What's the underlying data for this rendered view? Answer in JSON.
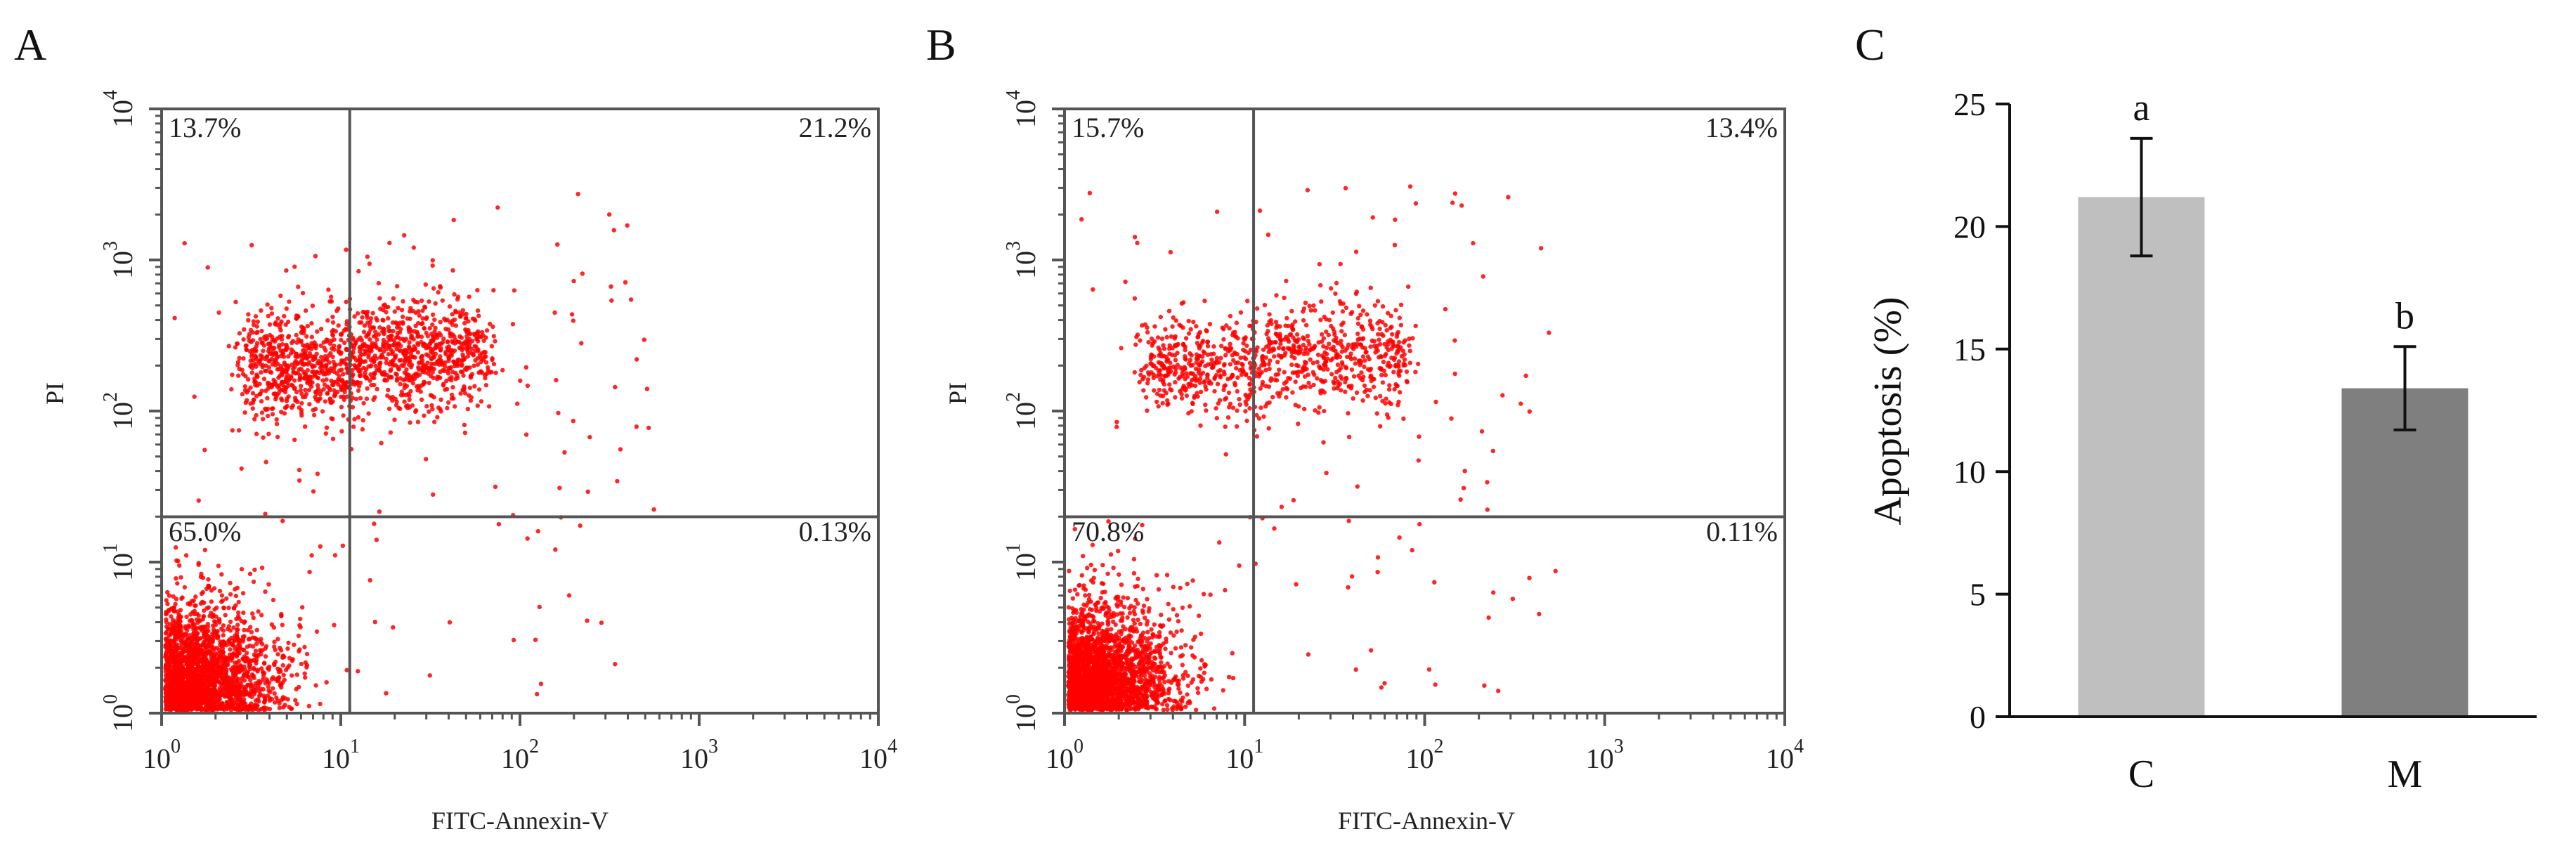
{
  "figure": {
    "panels": [
      {
        "letter": "A",
        "type": "flow-cytometry",
        "x_label": "FITC-Annexin-V",
        "y_label": "PI",
        "x_ticks": [
          "10^0",
          "10^1",
          "10^2",
          "10^3",
          "10^4"
        ],
        "y_ticks": [
          "10^0",
          "10^1",
          "10^2",
          "10^3",
          "10^4"
        ],
        "quadrants": {
          "upper_left": "13.7%",
          "upper_right": "21.2%",
          "lower_left": "65.0%",
          "lower_right": "0.13%"
        },
        "gate_x_log": 1.05,
        "gate_y_log": 1.3,
        "dot_color": "#ff0000"
      },
      {
        "letter": "B",
        "type": "flow-cytometry",
        "x_label": "FITC-Annexin-V",
        "y_label": "PI",
        "x_ticks": [
          "10^0",
          "10^1",
          "10^2",
          "10^3",
          "10^4"
        ],
        "y_ticks": [
          "10^0",
          "10^1",
          "10^2",
          "10^3",
          "10^4"
        ],
        "quadrants": {
          "upper_left": "15.7%",
          "upper_right": "13.4%",
          "lower_left": "70.8%",
          "lower_right": "0.11%"
        },
        "gate_x_log": 1.05,
        "gate_y_log": 1.3,
        "dot_color": "#ff0000"
      }
    ]
  },
  "chart_data": {
    "type": "bar",
    "panel_letter": "C",
    "categories": [
      "C",
      "M"
    ],
    "values": [
      21.2,
      13.4
    ],
    "errors": [
      2.4,
      1.7
    ],
    "significance": [
      "a",
      "b"
    ],
    "bar_colors": [
      "#bfbfbf",
      "#7f7f7f"
    ],
    "ylabel": "Apoptosis (%)",
    "xlabel": "",
    "ylim": [
      0,
      25
    ],
    "yticks": [
      0,
      5,
      10,
      15,
      20,
      25
    ],
    "grid": false,
    "legend": "none"
  }
}
